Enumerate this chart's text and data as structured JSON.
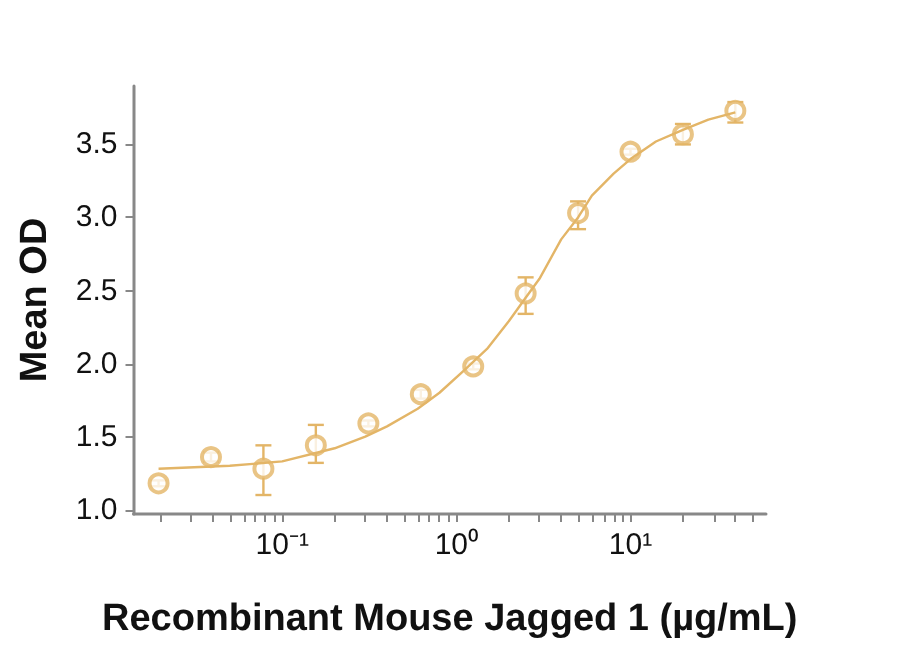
{
  "chart_data": {
    "type": "scatter",
    "xlabel": "Recombinant Mouse Jagged 1 (µg/mL)",
    "ylabel": "Mean OD",
    "log": "x",
    "grid": false,
    "marker": "circle",
    "xlim": [
      0.014,
      60
    ],
    "ylim": [
      0.97,
      3.9
    ],
    "xticks": [
      {
        "value": 0.02,
        "label": null
      },
      {
        "value": 0.03,
        "label": null
      },
      {
        "value": 0.04,
        "label": null
      },
      {
        "value": 0.05,
        "label": null
      },
      {
        "value": 0.06,
        "label": null
      },
      {
        "value": 0.07,
        "label": null
      },
      {
        "value": 0.08,
        "label": null
      },
      {
        "value": 0.09,
        "label": null
      },
      {
        "value": 0.1,
        "label": "10⁻¹"
      },
      {
        "value": 0.2,
        "label": null
      },
      {
        "value": 0.3,
        "label": null
      },
      {
        "value": 0.4,
        "label": null
      },
      {
        "value": 0.5,
        "label": null
      },
      {
        "value": 0.6,
        "label": null
      },
      {
        "value": 0.7,
        "label": null
      },
      {
        "value": 0.8,
        "label": null
      },
      {
        "value": 0.9,
        "label": null
      },
      {
        "value": 1,
        "label": "10⁰"
      },
      {
        "value": 2,
        "label": null
      },
      {
        "value": 3,
        "label": null
      },
      {
        "value": 4,
        "label": null
      },
      {
        "value": 5,
        "label": null
      },
      {
        "value": 6,
        "label": null
      },
      {
        "value": 7,
        "label": null
      },
      {
        "value": 8,
        "label": null
      },
      {
        "value": 9,
        "label": null
      },
      {
        "value": 10,
        "label": "10¹"
      },
      {
        "value": 20,
        "label": null
      },
      {
        "value": 30,
        "label": null
      },
      {
        "value": 40,
        "label": null
      },
      {
        "value": 50,
        "label": null
      }
    ],
    "yticks": [
      {
        "value": 1,
        "label": "1.0"
      },
      {
        "value": 1.5,
        "label": "1.5"
      },
      {
        "value": 2,
        "label": "2.0"
      },
      {
        "value": 2.5,
        "label": "2.5"
      },
      {
        "value": 3,
        "label": "3.0"
      },
      {
        "value": 3.5,
        "label": "3.5"
      }
    ],
    "series": [
      {
        "color": "#e3b567",
        "x": [
          0.0195,
          0.039,
          0.078,
          0.156,
          0.3125,
          0.625,
          1.25,
          2.5,
          5,
          10,
          20,
          40
        ],
        "values": [
          1.18,
          1.36,
          1.28,
          1.44,
          1.59,
          1.79,
          1.98,
          2.48,
          3.03,
          3.45,
          3.57,
          3.73
        ],
        "errors": [
          0.02,
          0.03,
          [
            1.1,
            1.44
          ],
          [
            1.32,
            1.58
          ],
          0.02,
          0.03,
          0.02,
          [
            2.34,
            2.59
          ],
          [
            2.92,
            3.11
          ],
          0.02,
          [
            3.5,
            3.64
          ],
          [
            3.65,
            3.79
          ]
        ]
      },
      {
        "type": "line",
        "color": "#e3b567",
        "marker": "none",
        "x": [
          0.0195,
          0.05,
          0.1,
          0.2,
          0.3,
          0.4,
          0.6,
          0.8,
          1.1,
          1.5,
          2,
          2.5,
          3,
          4,
          5,
          6,
          8,
          10,
          14,
          20,
          28,
          40
        ],
        "values": [
          1.28,
          1.3,
          1.33,
          1.42,
          1.5,
          1.57,
          1.69,
          1.8,
          1.95,
          2.1,
          2.29,
          2.45,
          2.58,
          2.85,
          3.0,
          3.15,
          3.3,
          3.4,
          3.52,
          3.6,
          3.67,
          3.72
        ]
      }
    ]
  }
}
